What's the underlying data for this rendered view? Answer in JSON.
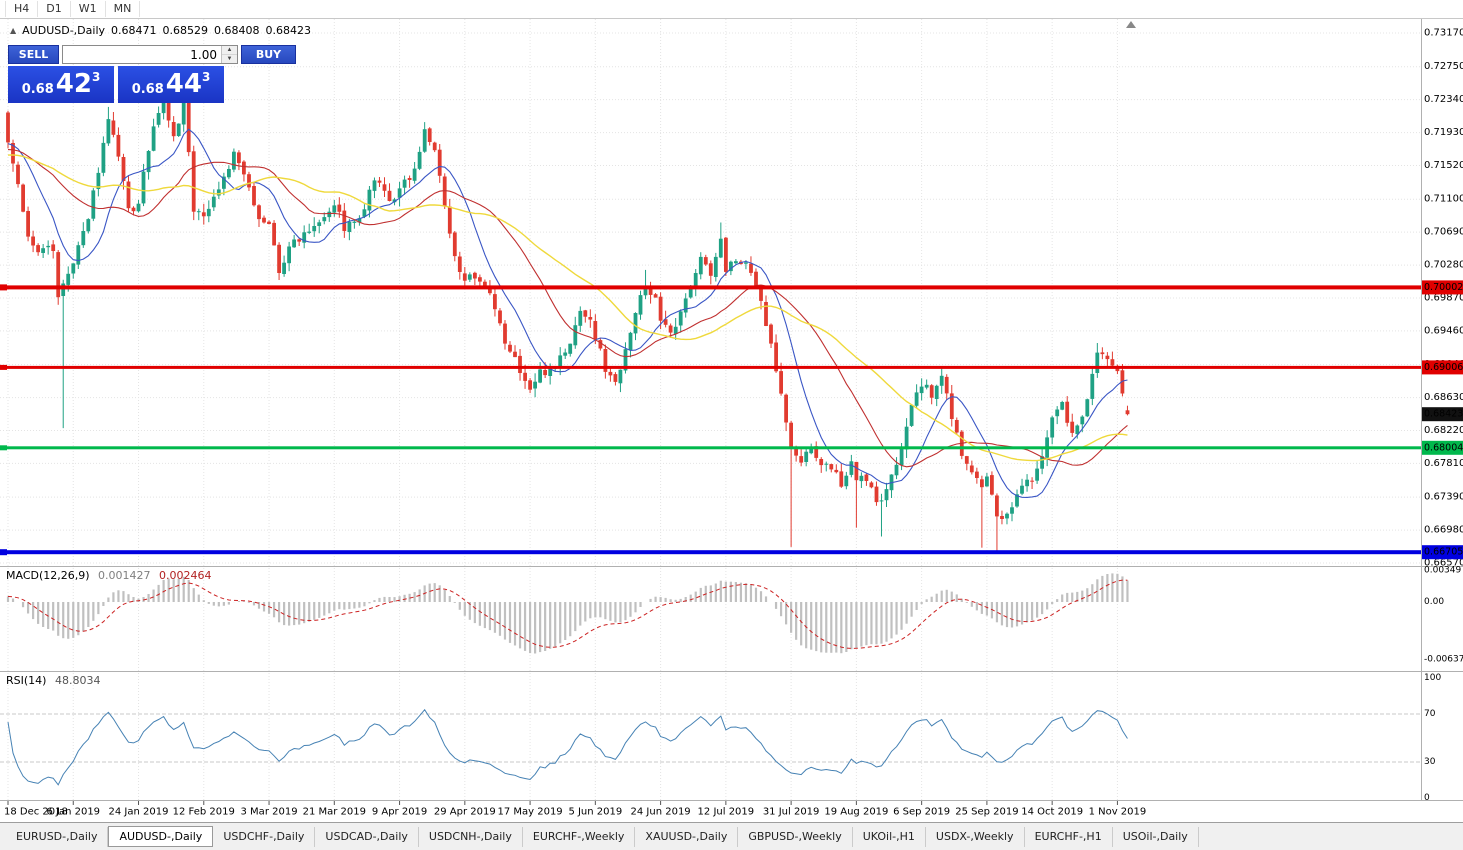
{
  "toolbar": {
    "timeframes": [
      "H4",
      "D1",
      "W1",
      "MN"
    ]
  },
  "legend": {
    "toggle_icon": "▲",
    "title": "AUDUSD-,Daily",
    "open": "0.68471",
    "high": "0.68529",
    "low": "0.68408",
    "close": "0.68423"
  },
  "trade_panel": {
    "sell_label": "SELL",
    "buy_label": "BUY",
    "volume": "1.00",
    "sell_big": "0.68",
    "sell_main": "42",
    "sell_sup": "3",
    "buy_big": "0.68",
    "buy_main": "44",
    "buy_sup": "3"
  },
  "price_axis": {
    "ticks": [
      "0.73170",
      "0.72750",
      "0.72340",
      "0.71930",
      "0.71520",
      "0.71100",
      "0.70690",
      "0.70280",
      "0.69870",
      "0.69460",
      "0.69040",
      "0.68630",
      "0.68220",
      "0.67810",
      "0.67390",
      "0.66980",
      "0.66570"
    ],
    "current_label": "0.68423",
    "current_price": 0.68423
  },
  "hlines": [
    {
      "price": 0.70002,
      "label": "0.70002",
      "color": "#E00000",
      "thickness": 4
    },
    {
      "price": 0.69006,
      "label": "0.69006",
      "color": "#E00000",
      "thickness": 3
    },
    {
      "price": 0.68004,
      "label": "0.68004",
      "color": "#00B84C",
      "thickness": 3
    },
    {
      "price": 0.66705,
      "label": "0.66705",
      "color": "#0000E0",
      "thickness": 4
    }
  ],
  "macd_panel": {
    "label": "MACD(12,26,9)",
    "value_main": "0.001427",
    "value_signal": "0.002464",
    "scale_labels": [
      {
        "text": "0.00349",
        "value": 0.00349
      },
      {
        "text": "0.00",
        "value": 0
      },
      {
        "text": "-0.00637",
        "value": -0.00637
      }
    ]
  },
  "rsi_panel": {
    "label": "RSI(14)",
    "value": "48.8034",
    "scale_labels": [
      {
        "text": "100",
        "value": 100
      },
      {
        "text": "70",
        "value": 70
      },
      {
        "text": "30",
        "value": 30
      },
      {
        "text": "0",
        "value": 0
      }
    ],
    "levels": [
      70,
      30
    ]
  },
  "date_axis": {
    "labels": [
      "18 Dec 2018",
      "6 Jan 2019",
      "24 Jan 2019",
      "12 Feb 2019",
      "3 Mar 2019",
      "21 Mar 2019",
      "9 Apr 2019",
      "29 Apr 2019",
      "17 May 2019",
      "5 Jun 2019",
      "24 Jun 2019",
      "12 Jul 2019",
      "31 Jul 2019",
      "19 Aug 2019",
      "6 Sep 2019",
      "25 Sep 2019",
      "14 Oct 2019",
      "1 Nov 2019"
    ]
  },
  "tabs": [
    "EURUSD-,Daily",
    "AUDUSD-,Daily",
    "USDCHF-,Daily",
    "USDCAD-,Daily",
    "USDCNH-,Daily",
    "EURCHF-,Weekly",
    "XAUUSD-,Daily",
    "GBPUSD-,Weekly",
    "UKOil-,H1",
    "USDX-,Weekly",
    "EURCHF-,H1",
    "USOil-,Daily"
  ],
  "active_tab": "AUDUSD-,Daily",
  "shift_marker": "▲",
  "colors": {
    "up": "#1FA184",
    "down": "#E13B30",
    "macd_hist": "#C0C0C0",
    "macd_signal": "#CC2222",
    "rsi": "#4682B4",
    "grid": "#E4E4E4",
    "badge_current_bg": "#111111"
  },
  "chart_data": {
    "type": "candlestick",
    "title": "AUDUSD-,Daily",
    "timeframe": "Daily",
    "y_range": [
      0.6657,
      0.7317
    ],
    "x_labels": [
      "18 Dec 2018",
      "6 Jan 2019",
      "24 Jan 2019",
      "12 Feb 2019",
      "3 Mar 2019",
      "21 Mar 2019",
      "9 Apr 2019",
      "29 Apr 2019",
      "17 May 2019",
      "5 Jun 2019",
      "24 Jun 2019",
      "12 Jul 2019",
      "31 Jul 2019",
      "19 Aug 2019",
      "6 Sep 2019",
      "25 Sep 2019",
      "14 Oct 2019",
      "1 Nov 2019"
    ],
    "bars_per_label": 13,
    "n_bars": 224,
    "current_ohlc": {
      "open": 0.68471,
      "high": 0.68529,
      "low": 0.68408,
      "close": 0.68423
    },
    "horizontal_levels": [
      0.70002,
      0.69006,
      0.68004,
      0.66705
    ],
    "close_waypoints": [
      [
        0,
        0.7183
      ],
      [
        2,
        0.7125
      ],
      [
        4,
        0.7062
      ],
      [
        6,
        0.7042
      ],
      [
        8,
        0.7056
      ],
      [
        9,
        0.704
      ],
      [
        10,
        0.6988
      ],
      [
        11,
        0.7005
      ],
      [
        13,
        0.7028
      ],
      [
        15,
        0.7065
      ],
      [
        17,
        0.7118
      ],
      [
        20,
        0.7208
      ],
      [
        22,
        0.716
      ],
      [
        24,
        0.7095
      ],
      [
        26,
        0.7102
      ],
      [
        28,
        0.7175
      ],
      [
        31,
        0.7235
      ],
      [
        33,
        0.7185
      ],
      [
        35,
        0.7228
      ],
      [
        37,
        0.71
      ],
      [
        39,
        0.7088
      ],
      [
        42,
        0.7125
      ],
      [
        45,
        0.7165
      ],
      [
        47,
        0.714
      ],
      [
        49,
        0.7098
      ],
      [
        52,
        0.7078
      ],
      [
        54,
        0.7022
      ],
      [
        57,
        0.7058
      ],
      [
        60,
        0.7075
      ],
      [
        63,
        0.7092
      ],
      [
        65,
        0.7105
      ],
      [
        67,
        0.7075
      ],
      [
        70,
        0.7082
      ],
      [
        73,
        0.7133
      ],
      [
        76,
        0.7108
      ],
      [
        78,
        0.7118
      ],
      [
        81,
        0.715
      ],
      [
        83,
        0.7192
      ],
      [
        85,
        0.7172
      ],
      [
        87,
        0.7098
      ],
      [
        89,
        0.7035
      ],
      [
        91,
        0.7015
      ],
      [
        94,
        0.7002
      ],
      [
        96,
        0.6988
      ],
      [
        99,
        0.6932
      ],
      [
        102,
        0.6898
      ],
      [
        104,
        0.6872
      ],
      [
        106,
        0.6893
      ],
      [
        109,
        0.6905
      ],
      [
        112,
        0.6928
      ],
      [
        114,
        0.6975
      ],
      [
        116,
        0.6958
      ],
      [
        117,
        0.6938
      ],
      [
        119,
        0.69
      ],
      [
        121,
        0.688
      ],
      [
        123,
        0.6928
      ],
      [
        125,
        0.6968
      ],
      [
        127,
        0.7002
      ],
      [
        129,
        0.6988
      ],
      [
        130,
        0.6962
      ],
      [
        132,
        0.6938
      ],
      [
        134,
        0.6965
      ],
      [
        136,
        0.7005
      ],
      [
        138,
        0.7042
      ],
      [
        140,
        0.7012
      ],
      [
        142,
        0.7062
      ],
      [
        143,
        0.7018
      ],
      [
        145,
        0.7038
      ],
      [
        147,
        0.7025
      ],
      [
        149,
        0.7002
      ],
      [
        151,
        0.6958
      ],
      [
        153,
        0.69
      ],
      [
        155,
        0.6832
      ],
      [
        156,
        0.68
      ],
      [
        158,
        0.6782
      ],
      [
        160,
        0.6798
      ],
      [
        163,
        0.6775
      ],
      [
        166,
        0.6758
      ],
      [
        168,
        0.6782
      ],
      [
        169,
        0.6765
      ],
      [
        171,
        0.6756
      ],
      [
        174,
        0.673
      ],
      [
        176,
        0.6762
      ],
      [
        178,
        0.6805
      ],
      [
        180,
        0.6852
      ],
      [
        182,
        0.688
      ],
      [
        184,
        0.6865
      ],
      [
        186,
        0.6888
      ],
      [
        188,
        0.6842
      ],
      [
        190,
        0.679
      ],
      [
        192,
        0.6772
      ],
      [
        194,
        0.6748
      ],
      [
        195,
        0.6762
      ],
      [
        197,
        0.6712
      ],
      [
        199,
        0.672
      ],
      [
        201,
        0.6745
      ],
      [
        203,
        0.6757
      ],
      [
        205,
        0.6772
      ],
      [
        207,
        0.6812
      ],
      [
        208,
        0.6832
      ],
      [
        210,
        0.6852
      ],
      [
        212,
        0.6815
      ],
      [
        214,
        0.6842
      ],
      [
        216,
        0.6892
      ],
      [
        217,
        0.6922
      ],
      [
        219,
        0.6906
      ],
      [
        221,
        0.6896
      ],
      [
        222,
        0.6868
      ],
      [
        223,
        0.68423
      ]
    ],
    "exact_closes": [
      [
        10,
        0.6988
      ],
      [
        11,
        0.7005
      ],
      [
        155,
        0.6832
      ],
      [
        156,
        0.68
      ],
      [
        221,
        0.6896
      ],
      [
        222,
        0.6868
      ]
    ],
    "special_lows": [
      [
        11,
        0.6825
      ],
      [
        156,
        0.6677
      ],
      [
        169,
        0.6701
      ],
      [
        174,
        0.669
      ],
      [
        194,
        0.6676
      ],
      [
        197,
        0.6671
      ]
    ],
    "special_highs": [
      [
        20,
        0.7225
      ],
      [
        31,
        0.7243
      ],
      [
        35,
        0.7238
      ],
      [
        83,
        0.7206
      ],
      [
        127,
        0.7022
      ],
      [
        142,
        0.7081
      ],
      [
        217,
        0.6931
      ]
    ],
    "first_bar_open": 0.7218,
    "pre_bars": 45,
    "pre_trend": [
      0.714,
      0.7183
    ],
    "noise_seed": 9,
    "noise_amp": 0.0013,
    "ma_lines": [
      {
        "period": 10,
        "color": "#3A56C5",
        "width": 1.1
      },
      {
        "period": 25,
        "color": "#C03030",
        "width": 1.1
      },
      {
        "period": 40,
        "color": "#EFD93C",
        "width": 1.4
      }
    ],
    "indicators": [
      {
        "name": "MACD",
        "params": [
          12,
          26,
          9
        ],
        "current_values": [
          0.001427,
          0.002464
        ],
        "axis_marks": [
          0.00349,
          0,
          -0.00637
        ]
      },
      {
        "name": "RSI",
        "params": [
          14
        ],
        "current_value": 48.8034,
        "axis_marks": [
          100,
          70,
          30,
          0
        ],
        "guide_levels": [
          70,
          30
        ]
      }
    ]
  }
}
